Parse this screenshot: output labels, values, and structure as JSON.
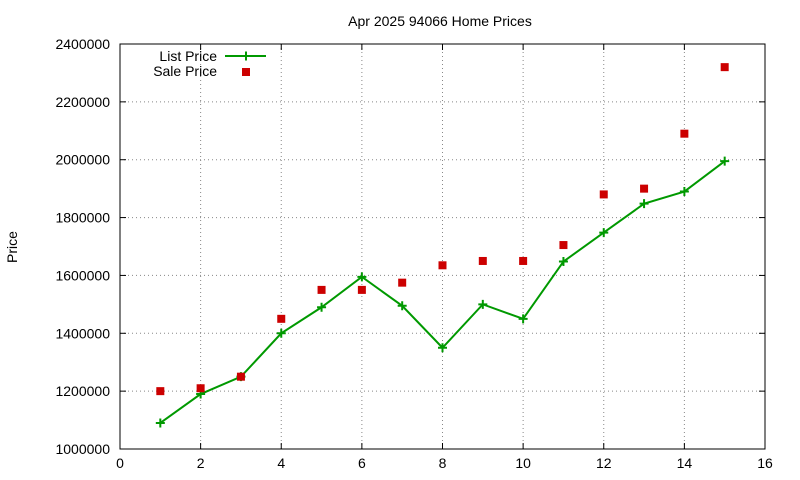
{
  "chart_data": {
    "type": "line",
    "title": "Apr 2025 94066 Home Prices",
    "xlabel": "",
    "ylabel": "Price",
    "xlim": [
      0,
      16
    ],
    "ylim": [
      1000000,
      2400000
    ],
    "x_ticks": [
      0,
      2,
      4,
      6,
      8,
      10,
      12,
      14,
      16
    ],
    "y_ticks": [
      1000000,
      1200000,
      1400000,
      1600000,
      1800000,
      2000000,
      2200000,
      2400000
    ],
    "grid": true,
    "legend_position": "top-left",
    "series": [
      {
        "name": "List Price",
        "style": "line-with-plus-markers",
        "color": "#009900",
        "x": [
          1,
          2,
          3,
          4,
          5,
          6,
          7,
          8,
          9,
          10,
          11,
          12,
          13,
          14,
          15
        ],
        "y": [
          1090000,
          1190000,
          1250000,
          1400000,
          1490000,
          1595000,
          1495000,
          1350000,
          1500000,
          1450000,
          1648000,
          1748000,
          1848000,
          1890000,
          1995000
        ]
      },
      {
        "name": "Sale Price",
        "style": "square-markers",
        "color": "#cc0000",
        "x": [
          1,
          2,
          3,
          4,
          5,
          6,
          7,
          8,
          9,
          10,
          11,
          12,
          13,
          14,
          15
        ],
        "y": [
          1200000,
          1210000,
          1250000,
          1450000,
          1550000,
          1550000,
          1575000,
          1635000,
          1650000,
          1650000,
          1705000,
          1880000,
          1900000,
          2090000,
          2320000
        ]
      }
    ]
  }
}
